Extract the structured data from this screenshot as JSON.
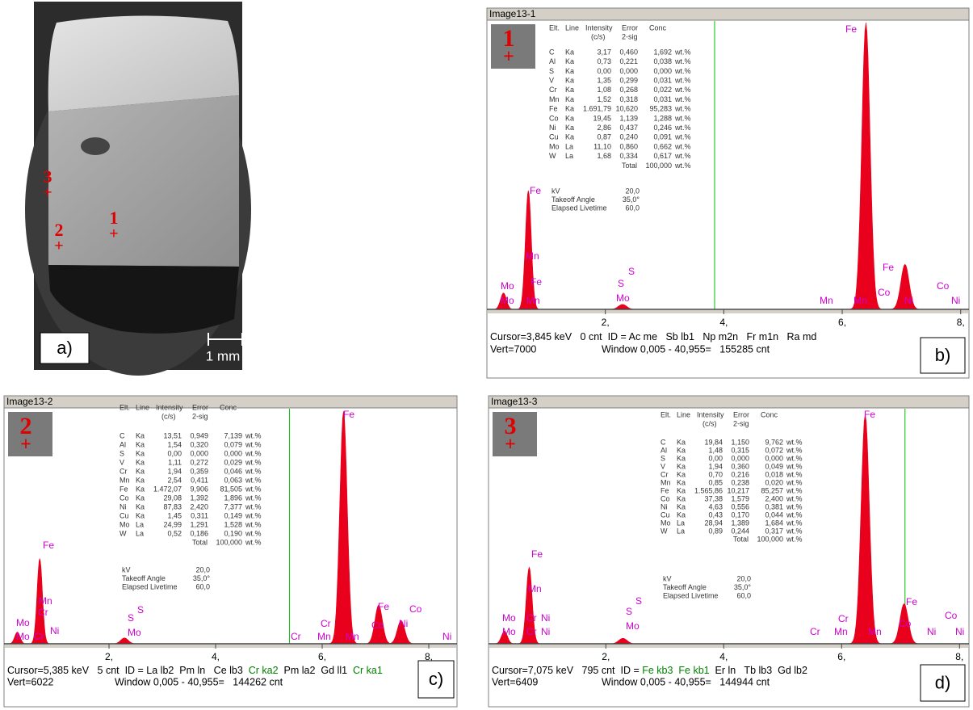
{
  "panel_a": {
    "label": "a)",
    "scale_bar": "1 mm",
    "sites": [
      {
        "number": "3",
        "marker": "+"
      },
      {
        "number": "2",
        "marker": "+"
      },
      {
        "number": "1",
        "marker": "+"
      }
    ]
  },
  "panels": [
    {
      "title": "Image13-1",
      "label": "b)",
      "site": "1",
      "marker": "+",
      "table": {
        "header": [
          "Elt.",
          "Line",
          "Intensity",
          "(c/s)",
          "Error",
          "2-sig",
          "Conc"
        ],
        "rows": [
          [
            "C",
            "Ka",
            "3,17",
            "0,460",
            "1,692",
            "wt.%"
          ],
          [
            "Al",
            "Ka",
            "0,73",
            "0,221",
            "0,038",
            "wt.%"
          ],
          [
            "S",
            "Ka",
            "0,00",
            "0,000",
            "0,000",
            "wt.%"
          ],
          [
            "V",
            "Ka",
            "1,35",
            "0,299",
            "0,031",
            "wt.%"
          ],
          [
            "Cr",
            "Ka",
            "1,08",
            "0,268",
            "0,022",
            "wt.%"
          ],
          [
            "Mn",
            "Ka",
            "1,52",
            "0,318",
            "0,031",
            "wt.%"
          ],
          [
            "Fe",
            "Ka",
            "1.691,79",
            "10,620",
            "95,283",
            "wt.%"
          ],
          [
            "Co",
            "Ka",
            "19,45",
            "1,139",
            "1,288",
            "wt.%"
          ],
          [
            "Ni",
            "Ka",
            "2,86",
            "0,437",
            "0,246",
            "wt.%"
          ],
          [
            "Cu",
            "Ka",
            "0,87",
            "0,240",
            "0,091",
            "wt.%"
          ],
          [
            "Mo",
            "La",
            "11,10",
            "0,860",
            "0,662",
            "wt.%"
          ],
          [
            "W",
            "La",
            "1,68",
            "0,334",
            "0,617",
            "wt.%"
          ]
        ],
        "total": [
          "Total",
          "100,000",
          "wt.%"
        ],
        "settings": [
          [
            "kV",
            "20,0"
          ],
          [
            "Takeoff Angle",
            "35,0°"
          ],
          [
            "Elapsed Livetime",
            "60,0"
          ]
        ]
      },
      "peak_labels": [
        "Fe",
        "Fe",
        "Mn",
        "Fe",
        "Mo",
        "Mo",
        "Mn",
        "S",
        "S",
        "Mo",
        "Mn",
        "Mn",
        "Fe",
        "Co",
        "Ni",
        "Co",
        "Ni"
      ],
      "spectrum": {
        "xlim": [
          0,
          8.14
        ],
        "ylim": [
          0,
          7000
        ],
        "xticks": [
          {
            "value": 2,
            "label": "2,"
          },
          {
            "value": 4,
            "label": "4,"
          },
          {
            "value": 6,
            "label": "6,"
          },
          {
            "value": 8,
            "label": "8,"
          }
        ],
        "energy": [
          0.28,
          0.7,
          2.29,
          6.4,
          7.06
        ],
        "counts": [
          400,
          2900,
          120,
          7000,
          1100
        ],
        "cursor": 3.845,
        "color": "#e8001c",
        "cursor_color": "#00c000"
      },
      "footer": {
        "line1": [
          {
            "text": "Cursor=3,845 keV   0 cnt  ID = Ac me   Sb lb1   Np m2n   Fr m1n   Ra md"
          }
        ],
        "vert": "Vert=7000",
        "window": "Window 0,005 - 40,955=   155285 cnt"
      }
    },
    {
      "title": "Image13-2",
      "label": "c)",
      "site": "2",
      "marker": "+",
      "table": {
        "header": [
          "Elt.",
          "Line",
          "Intensity",
          "(c/s)",
          "Error",
          "2-sig",
          "Conc"
        ],
        "rows": [
          [
            "C",
            "Ka",
            "13,51",
            "0,949",
            "7,139",
            "wt.%"
          ],
          [
            "Al",
            "Ka",
            "1,54",
            "0,320",
            "0,079",
            "wt.%"
          ],
          [
            "S",
            "Ka",
            "0,00",
            "0,000",
            "0,000",
            "wt.%"
          ],
          [
            "V",
            "Ka",
            "1,11",
            "0,272",
            "0,029",
            "wt.%"
          ],
          [
            "Cr",
            "Ka",
            "1,94",
            "0,359",
            "0,046",
            "wt.%"
          ],
          [
            "Mn",
            "Ka",
            "2,54",
            "0,411",
            "0,063",
            "wt.%"
          ],
          [
            "Fe",
            "Ka",
            "1.472,07",
            "9,906",
            "81,505",
            "wt.%"
          ],
          [
            "Co",
            "Ka",
            "29,08",
            "1,392",
            "1,896",
            "wt.%"
          ],
          [
            "Ni",
            "Ka",
            "87,83",
            "2,420",
            "7,377",
            "wt.%"
          ],
          [
            "Cu",
            "Ka",
            "1,45",
            "0,311",
            "0,149",
            "wt.%"
          ],
          [
            "Mo",
            "La",
            "24,99",
            "1,291",
            "1,528",
            "wt.%"
          ],
          [
            "W",
            "La",
            "0,52",
            "0,186",
            "0,190",
            "wt.%"
          ]
        ],
        "total": [
          "Total",
          "100,000",
          "wt.%"
        ],
        "settings": [
          [
            "kV",
            "20,0"
          ],
          [
            "Takeoff Angle",
            "35,0°"
          ],
          [
            "Elapsed Livetime",
            "60,0"
          ]
        ]
      },
      "peak_labels": [
        "Fe",
        "Fe",
        "Mn",
        "Cr",
        "Mo",
        "Mo",
        "Cr",
        "Ni",
        "S",
        "S",
        "Mo",
        "Cr",
        "Cr",
        "Mn",
        "Mn",
        "Fe",
        "Co",
        "Ni",
        "Co",
        "Ni"
      ],
      "spectrum": {
        "xlim": [
          0.03,
          8.53
        ],
        "ylim": [
          0,
          6022
        ],
        "xticks": [
          {
            "value": 2,
            "label": "2,"
          },
          {
            "value": 4,
            "label": "4,"
          },
          {
            "value": 6,
            "label": "6,"
          },
          {
            "value": 8,
            "label": "8,"
          }
        ],
        "energy": [
          0.28,
          0.7,
          2.29,
          6.4,
          7.06,
          7.48
        ],
        "counts": [
          300,
          2200,
          150,
          6000,
          1000,
          600
        ],
        "cursor": 5.385,
        "color": "#e8001c",
        "cursor_color": "#00c000"
      },
      "footer": {
        "line1": [
          {
            "text": "Cursor=5,385 keV   5 cnt  ID = La lb2  Pm ln   Ce lb3  "
          },
          {
            "text": "Cr ka2",
            "color": "#008000"
          },
          {
            "text": "  Pm la2  Gd ll1  "
          },
          {
            "text": "Cr ka1",
            "color": "#008000"
          }
        ],
        "vert": "Vert=6022",
        "window": "Window 0,005 - 40,955=   144262 cnt"
      }
    },
    {
      "title": "Image13-3",
      "label": "d)",
      "site": "3",
      "marker": "+",
      "table": {
        "header": [
          "Elt.",
          "Line",
          "Intensity",
          "(c/s)",
          "Error",
          "2-sig",
          "Conc"
        ],
        "rows": [
          [
            "C",
            "Ka",
            "19,84",
            "1,150",
            "9,762",
            "wt.%"
          ],
          [
            "Al",
            "Ka",
            "1,48",
            "0,315",
            "0,072",
            "wt.%"
          ],
          [
            "S",
            "Ka",
            "0,00",
            "0,000",
            "0,000",
            "wt.%"
          ],
          [
            "V",
            "Ka",
            "1,94",
            "0,360",
            "0,049",
            "wt.%"
          ],
          [
            "Cr",
            "Ka",
            "0,70",
            "0,216",
            "0,018",
            "wt.%"
          ],
          [
            "Mn",
            "Ka",
            "0,85",
            "0,238",
            "0,020",
            "wt.%"
          ],
          [
            "Fe",
            "Ka",
            "1.565,86",
            "10,217",
            "85,257",
            "wt.%"
          ],
          [
            "Co",
            "Ka",
            "37,38",
            "1,579",
            "2,400",
            "wt.%"
          ],
          [
            "Ni",
            "Ka",
            "4,63",
            "0,556",
            "0,381",
            "wt.%"
          ],
          [
            "Cu",
            "Ka",
            "0,43",
            "0,170",
            "0,044",
            "wt.%"
          ],
          [
            "Mo",
            "La",
            "28,94",
            "1,389",
            "1,684",
            "wt.%"
          ],
          [
            "W",
            "La",
            "0,89",
            "0,244",
            "0,317",
            "wt.%"
          ]
        ],
        "total": [
          "Total",
          "100,000",
          "wt.%"
        ],
        "settings": [
          [
            "kV",
            "20,0"
          ],
          [
            "Takeoff Angle",
            "35,0°"
          ],
          [
            "Elapsed Livetime",
            "60,0"
          ]
        ]
      },
      "peak_labels": [
        "Fe",
        "Fe",
        "Mn",
        "Mo",
        "Mo",
        "Cr",
        "Cr",
        "Ni",
        "Ni",
        "S",
        "S",
        "Mo",
        "Cr",
        "Cr",
        "Mn",
        "Mn",
        "Fe",
        "Co",
        "Ni",
        "Co",
        "Ni"
      ],
      "spectrum": {
        "xlim": [
          0.01,
          8.16
        ],
        "ylim": [
          0,
          6409
        ],
        "xticks": [
          {
            "value": 2,
            "label": "2,"
          },
          {
            "value": 4,
            "label": "4,"
          },
          {
            "value": 6,
            "label": "6,"
          },
          {
            "value": 8,
            "label": "8,"
          }
        ],
        "energy": [
          0.28,
          0.7,
          2.29,
          6.4,
          7.06
        ],
        "counts": [
          350,
          2100,
          150,
          6300,
          1100
        ],
        "cursor": 7.075,
        "color": "#e8001c",
        "cursor_color": "#00c000"
      },
      "footer": {
        "line1": [
          {
            "text": "Cursor=7,075 keV   795 cnt  ID = "
          },
          {
            "text": "Fe kb3  Fe kb1",
            "color": "#008000"
          },
          {
            "text": "  Er ln   Tb lb3  Gd lb2"
          }
        ],
        "vert": "Vert=6409",
        "window": "Window 0,005 - 40,955=   144944 cnt"
      }
    }
  ]
}
